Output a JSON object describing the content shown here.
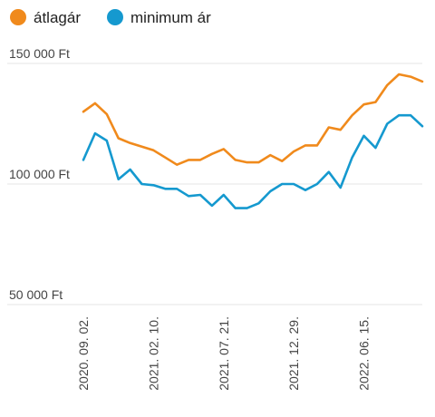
{
  "chart_data": {
    "type": "line",
    "legend_position": "top-left",
    "grid": true,
    "ylim": [
      50000,
      150000
    ],
    "y_ticks": [
      {
        "value": 150000,
        "label": "150 000 Ft"
      },
      {
        "value": 100000,
        "label": "100 000 Ft"
      },
      {
        "value": 50000,
        "label": "50 000 Ft"
      }
    ],
    "x_ticks": [
      {
        "index": 0,
        "label": "2020. 09. 02."
      },
      {
        "index": 6,
        "label": "2021. 02. 10."
      },
      {
        "index": 12,
        "label": "2021. 07. 21."
      },
      {
        "index": 18,
        "label": "2021. 12. 29."
      },
      {
        "index": 24,
        "label": "2022. 06. 15."
      }
    ],
    "point_count": 30,
    "series": [
      {
        "name": "átlagár",
        "color": "#f08a1c",
        "values": [
          130000,
          133500,
          129000,
          119000,
          117000,
          115500,
          114000,
          111000,
          108000,
          110000,
          110000,
          112500,
          114500,
          110000,
          109000,
          109000,
          112000,
          109500,
          113500,
          116000,
          116000,
          123500,
          122500,
          128500,
          133000,
          134000,
          141000,
          145500,
          144500,
          142500
        ]
      },
      {
        "name": "minimum ár",
        "color": "#1599cf",
        "values": [
          110000,
          121000,
          118000,
          102000,
          106000,
          100000,
          99500,
          98000,
          98000,
          95000,
          95500,
          91000,
          95500,
          90000,
          90000,
          92000,
          97000,
          100000,
          100000,
          97500,
          100000,
          105000,
          98500,
          111000,
          120000,
          115000,
          125000,
          128500,
          128500,
          124000
        ]
      }
    ]
  }
}
